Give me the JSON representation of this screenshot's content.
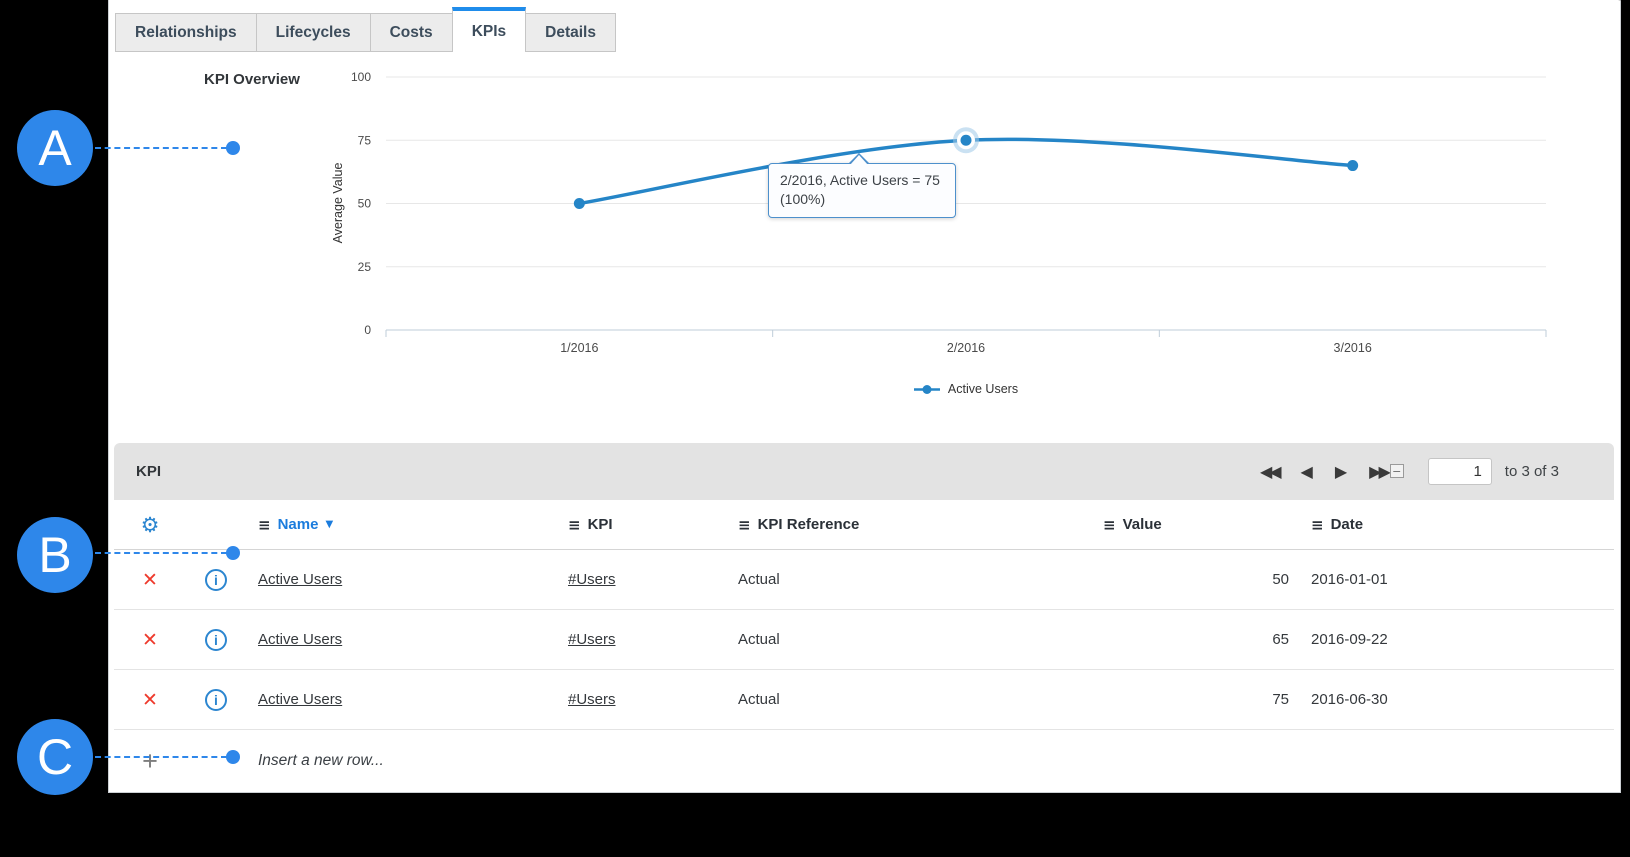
{
  "tabs": [
    {
      "label": "Relationships",
      "active": false
    },
    {
      "label": "Lifecycles",
      "active": false
    },
    {
      "label": "Costs",
      "active": false
    },
    {
      "label": "KPIs",
      "active": true
    },
    {
      "label": "Details",
      "active": false
    }
  ],
  "chart_data": {
    "type": "line",
    "title": "KPI Overview",
    "xlabel": "",
    "ylabel": "Average Value",
    "ylim": [
      0,
      100
    ],
    "yticks": [
      0,
      25,
      50,
      75,
      100
    ],
    "categories": [
      "1/2016",
      "2/2016",
      "3/2016"
    ],
    "series": [
      {
        "name": "Active Users",
        "values": [
          50,
          75,
          65
        ],
        "color": "#2585c7"
      }
    ],
    "grid": true,
    "legend_position": "bottom",
    "highlight": {
      "category": "2/2016",
      "value": 75
    },
    "tooltip": {
      "line1": "2/2016, Active Users = 75",
      "line2": "(100%)"
    }
  },
  "kpi_panel": {
    "title": "KPI",
    "pagination": {
      "page_value": "1",
      "range_label": "to 3 of 3"
    },
    "columns": [
      {
        "label": "Name",
        "sorted": true,
        "sort_direction": "desc"
      },
      {
        "label": "KPI"
      },
      {
        "label": "KPI Reference"
      },
      {
        "label": "Value"
      },
      {
        "label": "Date"
      }
    ],
    "rows": [
      {
        "name": "Active Users",
        "kpi": "#Users",
        "kpi_reference": "Actual",
        "value": "50",
        "date": "2016-01-01"
      },
      {
        "name": "Active Users",
        "kpi": "#Users",
        "kpi_reference": "Actual",
        "value": "65",
        "date": "2016-09-22"
      },
      {
        "name": "Active Users",
        "kpi": "#Users",
        "kpi_reference": "Actual",
        "value": "75",
        "date": "2016-06-30"
      }
    ],
    "insert_row_label": "Insert a new row..."
  },
  "annotations": [
    {
      "label": "A"
    },
    {
      "label": "B"
    },
    {
      "label": "C"
    }
  ],
  "icons": {
    "settings-gear": "⚙",
    "info": "i",
    "delete": "✕",
    "add": "+",
    "column-menu": "≡",
    "sort-desc": "▼",
    "first-page": "◀◀",
    "prev-page": "◀",
    "next-page": "▶",
    "last-page": "▶▶",
    "collapse": "−"
  },
  "colors": {
    "line_blue": "#2585c7",
    "marker_blue": "#2e87ea",
    "sorted_header_blue": "#1b7cdd",
    "icon_blue": "#2c86d0",
    "delete_red": "#ee3a2c",
    "active_tab_border": "#1f8ceb",
    "panel_header_gray": "#e3e3e3"
  }
}
